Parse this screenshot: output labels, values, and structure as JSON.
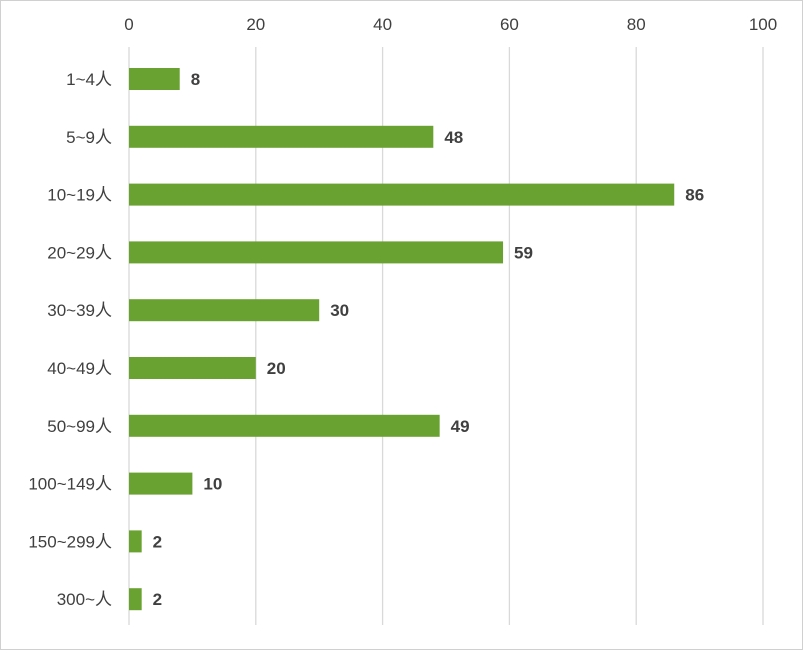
{
  "chart_data": {
    "type": "bar",
    "orientation": "horizontal",
    "categories": [
      "1~4人",
      "5~9人",
      "10~19人",
      "20~29人",
      "30~39人",
      "40~49人",
      "50~99人",
      "100~149人",
      "150~299人",
      "300~人"
    ],
    "values": [
      8,
      48,
      86,
      59,
      30,
      20,
      49,
      10,
      2,
      2
    ],
    "x_ticks": [
      "0",
      "20",
      "40",
      "60",
      "80",
      "100"
    ],
    "xlim": [
      0,
      100
    ],
    "x_axis_position": "top",
    "grid": true,
    "data_labels": true,
    "legend": false,
    "bar_color": "#6aa232",
    "grid_color": "#d9d9d9",
    "text_color": "#404040"
  }
}
